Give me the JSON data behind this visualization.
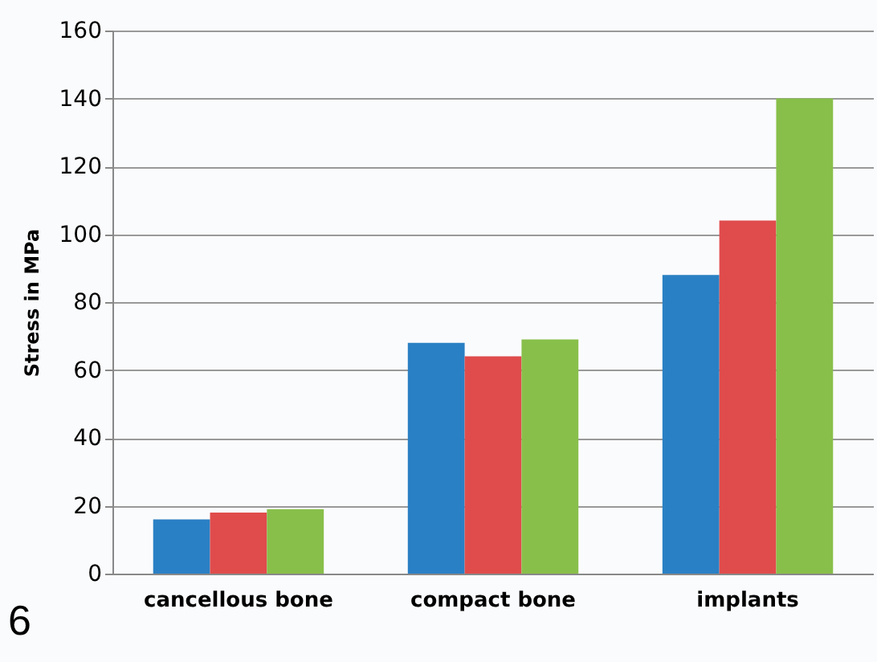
{
  "chart_data": {
    "type": "bar",
    "ylabel": "Stress in MPa",
    "categories": [
      "cancellous  bone",
      "compact  bone",
      "implants"
    ],
    "series": [
      {
        "color": "#2a80c4",
        "values": [
          16,
          68,
          88
        ]
      },
      {
        "color": "#e04c4c",
        "values": [
          18,
          64,
          104
        ]
      },
      {
        "color": "#88bf4a",
        "values": [
          19,
          69,
          140
        ]
      }
    ],
    "ylim": [
      0,
      160
    ],
    "yticks": [
      0,
      20,
      40,
      60,
      80,
      100,
      120,
      140,
      160
    ],
    "grid": "y",
    "legend": false,
    "annotations": [
      "6"
    ]
  }
}
